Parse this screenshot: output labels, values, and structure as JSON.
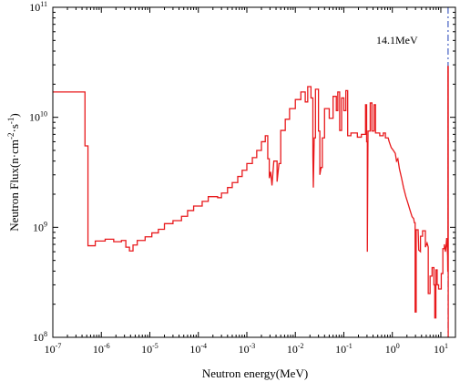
{
  "chart_data": {
    "type": "line",
    "xscale": "log",
    "yscale": "log",
    "xlim": [
      1e-07,
      20
    ],
    "ylim": [
      100000000.0,
      100000000000.0
    ],
    "xlabel": "Neutron energy(MeV)",
    "ylabel_parts": [
      "Neutron Flux(n·cm",
      "-2",
      "·s",
      "-1",
      ")"
    ],
    "x_ticks": [
      {
        "value": 1e-07,
        "base": "10",
        "exp": "-7"
      },
      {
        "value": 1e-06,
        "base": "10",
        "exp": "-6"
      },
      {
        "value": 1e-05,
        "base": "10",
        "exp": "-5"
      },
      {
        "value": 0.0001,
        "base": "10",
        "exp": "-4"
      },
      {
        "value": 0.001,
        "base": "10",
        "exp": "-3"
      },
      {
        "value": 0.01,
        "base": "10",
        "exp": "-2"
      },
      {
        "value": 0.1,
        "base": "10",
        "exp": "-1"
      },
      {
        "value": 1,
        "base": "10",
        "exp": "0"
      },
      {
        "value": 10,
        "base": "10",
        "exp": "1"
      }
    ],
    "y_ticks": [
      {
        "value": 100000000.0,
        "base": "10",
        "exp": "8"
      },
      {
        "value": 1000000000.0,
        "base": "10",
        "exp": "9"
      },
      {
        "value": 10000000000.0,
        "base": "10",
        "exp": "10"
      },
      {
        "value": 100000000000.0,
        "base": "10",
        "exp": "11"
      }
    ],
    "grid": false,
    "line_color": "#e8191c",
    "marker_line": {
      "x": 14.1,
      "label": "14.1MeV",
      "color": "#1f3fb5",
      "style": "dash-dot"
    },
    "series": [
      {
        "points": [
          [
            1e-07,
            17000000000.0
          ],
          [
            4.6e-07,
            17000000000.0
          ],
          [
            4.6e-07,
            5500000000.0
          ],
          [
            5.3e-07,
            5500000000.0
          ],
          [
            5.3e-07,
            680000000.0
          ],
          [
            7.5e-07,
            680000000.0
          ],
          [
            7.5e-07,
            750000000.0
          ],
          [
            1.2e-06,
            750000000.0
          ],
          [
            1.2e-06,
            780000000.0
          ],
          [
            1.8e-06,
            780000000.0
          ],
          [
            1.8e-06,
            740000000.0
          ],
          [
            2.6e-06,
            740000000.0
          ],
          [
            2.6e-06,
            760000000.0
          ],
          [
            3.2e-06,
            760000000.0
          ],
          [
            3.2e-06,
            660000000.0
          ],
          [
            3.8e-06,
            660000000.0
          ],
          [
            3.8e-06,
            610000000.0
          ],
          [
            4.5e-06,
            610000000.0
          ],
          [
            4.5e-06,
            690000000.0
          ],
          [
            5.5e-06,
            690000000.0
          ],
          [
            5.5e-06,
            760000000.0
          ],
          [
            8e-06,
            760000000.0
          ],
          [
            8e-06,
            820000000.0
          ],
          [
            1.1e-05,
            820000000.0
          ],
          [
            1.1e-05,
            890000000.0
          ],
          [
            1.5e-05,
            890000000.0
          ],
          [
            1.5e-05,
            960000000.0
          ],
          [
            2e-05,
            960000000.0
          ],
          [
            2e-05,
            1080000000.0
          ],
          [
            3e-05,
            1080000000.0
          ],
          [
            3e-05,
            1150000000.0
          ],
          [
            4.5e-05,
            1150000000.0
          ],
          [
            4.5e-05,
            1260000000.0
          ],
          [
            6e-05,
            1260000000.0
          ],
          [
            6e-05,
            1420000000.0
          ],
          [
            8e-05,
            1420000000.0
          ],
          [
            8e-05,
            1560000000.0
          ],
          [
            0.00012,
            1560000000.0
          ],
          [
            0.00012,
            1720000000.0
          ],
          [
            0.00016,
            1720000000.0
          ],
          [
            0.00016,
            1900000000.0
          ],
          [
            0.00025,
            1900000000.0
          ],
          [
            0.00025,
            1860000000.0
          ],
          [
            0.0003,
            1860000000.0
          ],
          [
            0.0003,
            2050000000.0
          ],
          [
            0.0004,
            2050000000.0
          ],
          [
            0.0004,
            2300000000.0
          ],
          [
            0.0005,
            2300000000.0
          ],
          [
            0.0005,
            2550000000.0
          ],
          [
            0.00065,
            2550000000.0
          ],
          [
            0.00065,
            2900000000.0
          ],
          [
            0.0008,
            2900000000.0
          ],
          [
            0.0008,
            3300000000.0
          ],
          [
            0.001,
            3300000000.0
          ],
          [
            0.001,
            3800000000.0
          ],
          [
            0.0013,
            3800000000.0
          ],
          [
            0.0013,
            4300000000.0
          ],
          [
            0.0016,
            4300000000.0
          ],
          [
            0.0016,
            5000000000.0
          ],
          [
            0.002,
            5000000000.0
          ],
          [
            0.002,
            6000000000.0
          ],
          [
            0.0024,
            6000000000.0
          ],
          [
            0.0024,
            6800000000.0
          ],
          [
            0.0027,
            6800000000.0
          ],
          [
            0.0027,
            4200000000.0
          ],
          [
            0.0029,
            4200000000.0
          ],
          [
            0.0029,
            2800000000.0
          ],
          [
            0.0031,
            3200000000.0
          ],
          [
            0.0033,
            2400000000.0
          ],
          [
            0.0036,
            4000000000.0
          ],
          [
            0.0042,
            4000000000.0
          ],
          [
            0.0042,
            2600000000.0
          ],
          [
            0.0046,
            3800000000.0
          ],
          [
            0.005,
            3800000000.0
          ],
          [
            0.005,
            7600000000.0
          ],
          [
            0.0062,
            7600000000.0
          ],
          [
            0.0062,
            9600000000.0
          ],
          [
            0.0076,
            9600000000.0
          ],
          [
            0.0076,
            12000000000.0
          ],
          [
            0.01,
            12000000000.0
          ],
          [
            0.01,
            14500000000.0
          ],
          [
            0.013,
            14500000000.0
          ],
          [
            0.013,
            17000000000.0
          ],
          [
            0.016,
            17000000000.0
          ],
          [
            0.016,
            13800000000.0
          ],
          [
            0.018,
            13800000000.0
          ],
          [
            0.018,
            19000000000.0
          ],
          [
            0.021,
            19000000000.0
          ],
          [
            0.021,
            15000000000.0
          ],
          [
            0.023,
            15000000000.0
          ],
          [
            0.023,
            4500000000.0
          ],
          [
            0.0235,
            2300000000.0
          ],
          [
            0.0245,
            6500000000.0
          ],
          [
            0.026,
            6500000000.0
          ],
          [
            0.026,
            18000000000.0
          ],
          [
            0.03,
            18000000000.0
          ],
          [
            0.03,
            7500000000.0
          ],
          [
            0.032,
            7500000000.0
          ],
          [
            0.032,
            3000000000.0
          ],
          [
            0.034,
            3500000000.0
          ],
          [
            0.036,
            3500000000.0
          ],
          [
            0.036,
            6500000000.0
          ],
          [
            0.04,
            6500000000.0
          ],
          [
            0.04,
            12000000000.0
          ],
          [
            0.05,
            12000000000.0
          ],
          [
            0.05,
            9800000000.0
          ],
          [
            0.06,
            9800000000.0
          ],
          [
            0.06,
            15500000000.0
          ],
          [
            0.07,
            15500000000.0
          ],
          [
            0.07,
            11500000000.0
          ],
          [
            0.075,
            11500000000.0
          ],
          [
            0.075,
            17000000000.0
          ],
          [
            0.082,
            17000000000.0
          ],
          [
            0.082,
            7600000000.0
          ],
          [
            0.09,
            7600000000.0
          ],
          [
            0.09,
            15000000000.0
          ],
          [
            0.1,
            15000000000.0
          ],
          [
            0.1,
            11500000000.0
          ],
          [
            0.11,
            11500000000.0
          ],
          [
            0.11,
            17500000000.0
          ],
          [
            0.12,
            17500000000.0
          ],
          [
            0.12,
            6800000000.0
          ],
          [
            0.14,
            6800000000.0
          ],
          [
            0.14,
            7200000000.0
          ],
          [
            0.19,
            7200000000.0
          ],
          [
            0.19,
            6600000000.0
          ],
          [
            0.23,
            6600000000.0
          ],
          [
            0.23,
            7000000000.0
          ],
          [
            0.28,
            7000000000.0
          ],
          [
            0.28,
            13000000000.0
          ],
          [
            0.295,
            13000000000.0
          ],
          [
            0.295,
            6000000000.0
          ],
          [
            0.305,
            6000000000.0
          ],
          [
            0.305,
            600000000.0
          ],
          [
            0.315,
            7500000000.0
          ],
          [
            0.35,
            7500000000.0
          ],
          [
            0.35,
            13500000000.0
          ],
          [
            0.38,
            13500000000.0
          ],
          [
            0.38,
            7500000000.0
          ],
          [
            0.42,
            7500000000.0
          ],
          [
            0.42,
            13000000000.0
          ],
          [
            0.45,
            13000000000.0
          ],
          [
            0.45,
            7200000000.0
          ],
          [
            0.55,
            7200000000.0
          ],
          [
            0.55,
            6800000000.0
          ],
          [
            0.65,
            6800000000.0
          ],
          [
            0.65,
            7200000000.0
          ],
          [
            0.72,
            7200000000.0
          ],
          [
            0.72,
            6500000000.0
          ],
          [
            0.82,
            6500000000.0
          ],
          [
            0.86,
            6000000000.0
          ],
          [
            0.95,
            5300000000.0
          ],
          [
            1.05,
            5000000000.0
          ],
          [
            1.15,
            4700000000.0
          ],
          [
            1.22,
            4000000000.0
          ],
          [
            1.3,
            4200000000.0
          ],
          [
            1.4,
            3400000000.0
          ],
          [
            1.55,
            2800000000.0
          ],
          [
            1.7,
            2300000000.0
          ],
          [
            1.9,
            1900000000.0
          ],
          [
            2.1,
            1650000000.0
          ],
          [
            2.35,
            1400000000.0
          ],
          [
            2.55,
            1250000000.0
          ],
          [
            2.75,
            1200000000.0
          ],
          [
            2.85,
            1100000000.0
          ],
          [
            2.95,
            1100000000.0
          ],
          [
            2.95,
            170000000.0
          ],
          [
            3.1,
            170000000.0
          ],
          [
            3.1,
            950000000.0
          ],
          [
            3.4,
            950000000.0
          ],
          [
            3.5,
            620000000.0
          ],
          [
            3.8,
            600000000.0
          ],
          [
            3.8,
            830000000.0
          ],
          [
            4.2,
            830000000.0
          ],
          [
            4.2,
            930000000.0
          ],
          [
            4.8,
            930000000.0
          ],
          [
            4.8,
            660000000.0
          ],
          [
            5.2,
            720000000.0
          ],
          [
            5.5,
            660000000.0
          ],
          [
            5.5,
            250000000.0
          ],
          [
            6.0,
            250000000.0
          ],
          [
            6.0,
            360000000.0
          ],
          [
            6.6,
            360000000.0
          ],
          [
            6.6,
            430000000.0
          ],
          [
            7.2,
            430000000.0
          ],
          [
            7.2,
            300000000.0
          ],
          [
            7.5,
            300000000.0
          ],
          [
            7.5,
            150000000.0
          ],
          [
            7.9,
            150000000.0
          ],
          [
            7.9,
            410000000.0
          ],
          [
            8.4,
            410000000.0
          ],
          [
            8.4,
            300000000.0
          ],
          [
            9.0,
            300000000.0
          ],
          [
            9.0,
            275000000.0
          ],
          [
            10.2,
            275000000.0
          ],
          [
            10.2,
            380000000.0
          ],
          [
            11.0,
            380000000.0
          ],
          [
            11.0,
            640000000.0
          ],
          [
            11.8,
            640000000.0
          ],
          [
            11.8,
            700000000.0
          ],
          [
            12.4,
            600000000.0
          ],
          [
            12.8,
            680000000.0
          ],
          [
            13.2,
            800000000.0
          ],
          [
            13.5,
            680000000.0
          ],
          [
            13.8,
            550000000.0
          ],
          [
            13.9,
            400000000.0
          ],
          [
            14.0,
            400000000.0
          ],
          [
            14.0,
            29000000000.0
          ],
          [
            14.2,
            29000000000.0
          ],
          [
            14.2,
            100000000.0
          ]
        ]
      }
    ]
  }
}
